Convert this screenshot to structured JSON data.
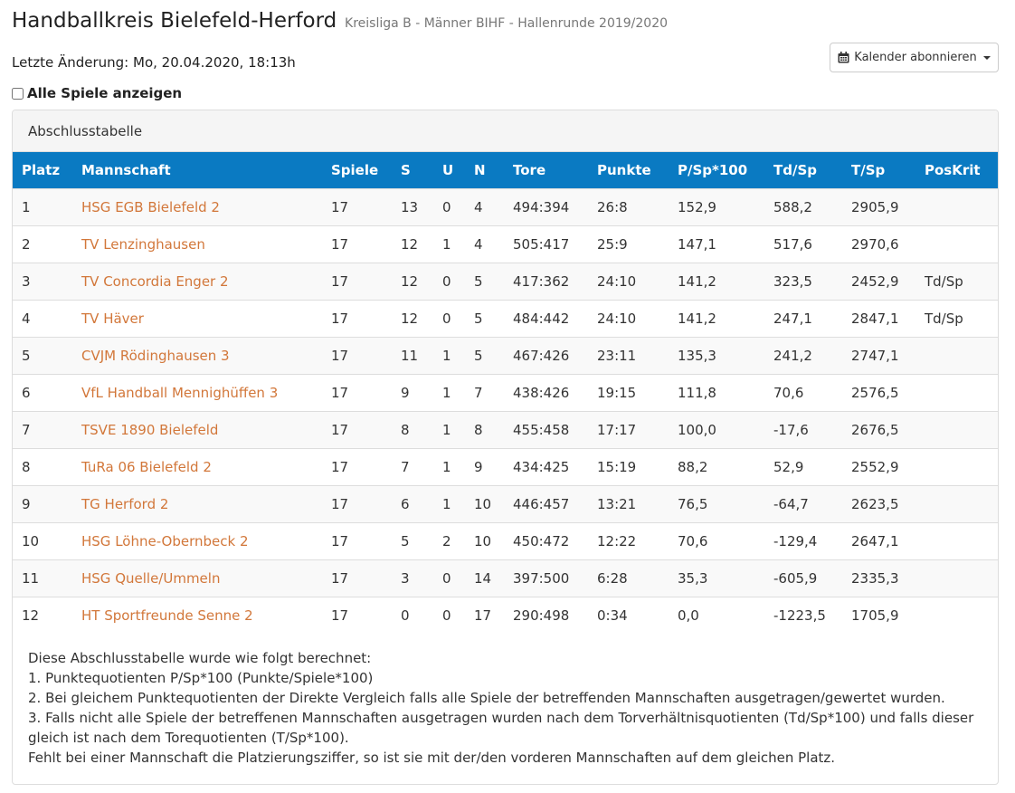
{
  "header": {
    "title": "Handballkreis Bielefeld-Herford",
    "subtitle": "Kreisliga B - Männer BIHF - Hallenrunde 2019/2020"
  },
  "updated": "Letzte Änderung: Mo, 20.04.2020, 18:13h",
  "calendar_button": {
    "label": "Kalender abonnieren",
    "icon": "calendar-icon"
  },
  "show_all": {
    "label": "Alle Spiele anzeigen",
    "checked": false
  },
  "panel": {
    "title": "Abschlusstabelle"
  },
  "table": {
    "header_color": "#0a7ac2",
    "link_color": "#d2773a",
    "columns": [
      "Platz",
      "Mannschaft",
      "Spiele",
      "S",
      "U",
      "N",
      "Tore",
      "Punkte",
      "P/Sp*100",
      "Td/Sp",
      "T/Sp",
      "PosKrit"
    ],
    "rows": [
      [
        "1",
        "HSG EGB Bielefeld 2",
        "17",
        "13",
        "0",
        "4",
        "494:394",
        "26:8",
        "152,9",
        "588,2",
        "2905,9",
        ""
      ],
      [
        "2",
        "TV Lenzinghausen",
        "17",
        "12",
        "1",
        "4",
        "505:417",
        "25:9",
        "147,1",
        "517,6",
        "2970,6",
        ""
      ],
      [
        "3",
        "TV Concordia Enger 2",
        "17",
        "12",
        "0",
        "5",
        "417:362",
        "24:10",
        "141,2",
        "323,5",
        "2452,9",
        "Td/Sp"
      ],
      [
        "4",
        "TV Häver",
        "17",
        "12",
        "0",
        "5",
        "484:442",
        "24:10",
        "141,2",
        "247,1",
        "2847,1",
        "Td/Sp"
      ],
      [
        "5",
        "CVJM Rödinghausen 3",
        "17",
        "11",
        "1",
        "5",
        "467:426",
        "23:11",
        "135,3",
        "241,2",
        "2747,1",
        ""
      ],
      [
        "6",
        "VfL Handball Mennighüffen 3",
        "17",
        "9",
        "1",
        "7",
        "438:426",
        "19:15",
        "111,8",
        "70,6",
        "2576,5",
        ""
      ],
      [
        "7",
        "TSVE 1890 Bielefeld",
        "17",
        "8",
        "1",
        "8",
        "455:458",
        "17:17",
        "100,0",
        "-17,6",
        "2676,5",
        ""
      ],
      [
        "8",
        "TuRa 06 Bielefeld 2",
        "17",
        "7",
        "1",
        "9",
        "434:425",
        "15:19",
        "88,2",
        "52,9",
        "2552,9",
        ""
      ],
      [
        "9",
        "TG Herford 2",
        "17",
        "6",
        "1",
        "10",
        "446:457",
        "13:21",
        "76,5",
        "-64,7",
        "2623,5",
        ""
      ],
      [
        "10",
        "HSG Löhne-Obernbeck 2",
        "17",
        "5",
        "2",
        "10",
        "450:472",
        "12:22",
        "70,6",
        "-129,4",
        "2647,1",
        ""
      ],
      [
        "11",
        "HSG Quelle/Ummeln",
        "17",
        "3",
        "0",
        "14",
        "397:500",
        "6:28",
        "35,3",
        "-605,9",
        "2335,3",
        ""
      ],
      [
        "12",
        "HT Sportfreunde Senne 2",
        "17",
        "0",
        "0",
        "17",
        "290:498",
        "0:34",
        "0,0",
        "-1223,5",
        "1705,9",
        ""
      ]
    ]
  },
  "notes": [
    "Diese Abschlusstabelle wurde wie folgt berechnet:",
    "1. Punktequotienten P/Sp*100 (Punkte/Spiele*100)",
    "2. Bei gleichem Punktequotienten der Direkte Vergleich falls alle Spiele der betreffenden Mannschaften ausgetragen/gewertet wurden.",
    "3. Falls nicht alle Spiele der betreffenen Mannschaften ausgetragen wurden nach dem Torverhältnisquotienten (Td/Sp*100) und falls dieser gleich ist nach dem Torequotienten (T/Sp*100).",
    "Fehlt bei einer Mannschaft die Platzierungsziffer, so ist sie mit der/den vorderen Mannschaften auf dem gleichen Platz."
  ]
}
